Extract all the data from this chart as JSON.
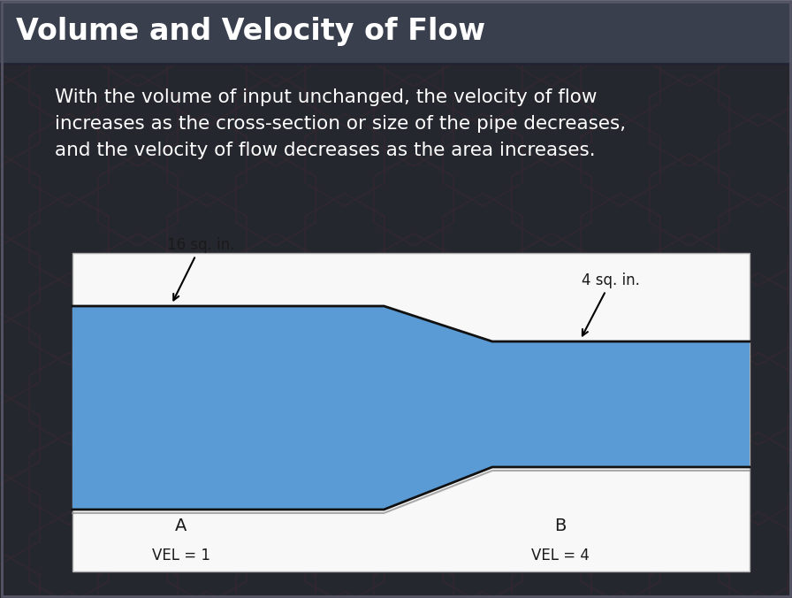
{
  "title": "Volume and Velocity of Flow",
  "title_fontsize": 24,
  "title_text_color": "#ffffff",
  "title_bg_color": "#3a3f4e",
  "body_bg_color": "#2c303a",
  "body_text_line1": "With the volume of input unchanged, the velocity of flow",
  "body_text_line2": "increases as the cross-section or size of the pipe decreases,",
  "body_text_line3": "and the velocity of flow decreases as the area increases.",
  "body_fontsize": 15.5,
  "body_text_color": "#ffffff",
  "diagram_bg": "#f8f8f8",
  "pipe_fill_color": "#5b9bd5",
  "pipe_edge_color": "#111111",
  "pipe_edge_width": 2.0,
  "pipe_shadow_color": "#888888",
  "left_label_top": "16 sq. in.",
  "right_label_top": "4 sq. in.",
  "left_label_bottom": "A",
  "right_label_bottom": "B",
  "left_vel": "VEL = 1",
  "right_vel": "VEL = 4",
  "label_fontsize": 12,
  "hex_edge_color": "#5a0000",
  "hex_bg_color": "#0a0000",
  "outer_border_color": "#555566"
}
